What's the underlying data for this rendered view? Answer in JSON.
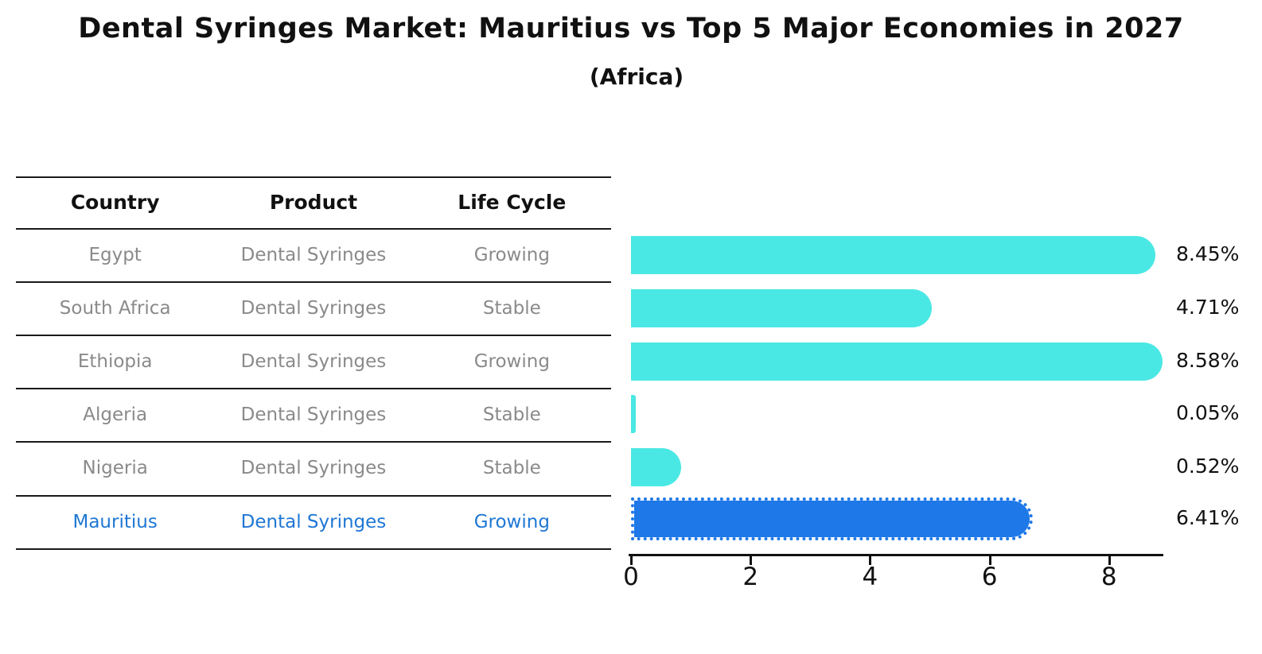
{
  "title": "Dental Syringes Market: Mauritius vs Top 5 Major Economies in 2027",
  "subtitle": "(Africa)",
  "table": {
    "headers": [
      "Country",
      "Product",
      "Life Cycle"
    ],
    "rows": [
      {
        "country": "Egypt",
        "product": "Dental Syringes",
        "life_cycle": "Growing",
        "highlighted": false
      },
      {
        "country": "South Africa",
        "product": "Dental Syringes",
        "life_cycle": "Stable",
        "highlighted": false
      },
      {
        "country": "Ethiopia",
        "product": "Dental Syringes",
        "life_cycle": "Growing",
        "highlighted": false
      },
      {
        "country": "Algeria",
        "product": "Dental Syringes",
        "life_cycle": "Stable",
        "highlighted": false
      },
      {
        "country": "Nigeria",
        "product": "Dental Syringes",
        "life_cycle": "Stable",
        "highlighted": false
      },
      {
        "country": "Mauritius",
        "product": "Dental Syringes",
        "life_cycle": "Growing",
        "highlighted": true
      }
    ]
  },
  "chart_data": {
    "type": "bar",
    "orientation": "horizontal",
    "title": "Dental Syringes Market: Mauritius vs Top 5 Major Economies in 2027",
    "subtitle": "(Africa)",
    "categories": [
      "Egypt",
      "South Africa",
      "Ethiopia",
      "Algeria",
      "Nigeria",
      "Mauritius"
    ],
    "values": [
      8.45,
      4.71,
      8.58,
      0.05,
      0.52,
      6.41
    ],
    "value_labels": [
      "8.45%",
      "4.71%",
      "8.58%",
      "0.05%",
      "0.52%",
      "6.41%"
    ],
    "x_ticks": [
      0,
      2,
      4,
      6,
      8
    ],
    "xlim": [
      0,
      9
    ],
    "grid": false,
    "legend": false,
    "highlight_index": 5,
    "highlight_style": "dotted-border",
    "bar_color": "#4ae8e4",
    "highlight_color": "#1e78e8"
  },
  "colors": {
    "bar": "#4ae8e4",
    "highlight": "#1e78e8",
    "highlight_text": "#1f77d4",
    "row_text": "#8a8a8a",
    "header_text": "#111111",
    "line": "#1a1a1a"
  }
}
